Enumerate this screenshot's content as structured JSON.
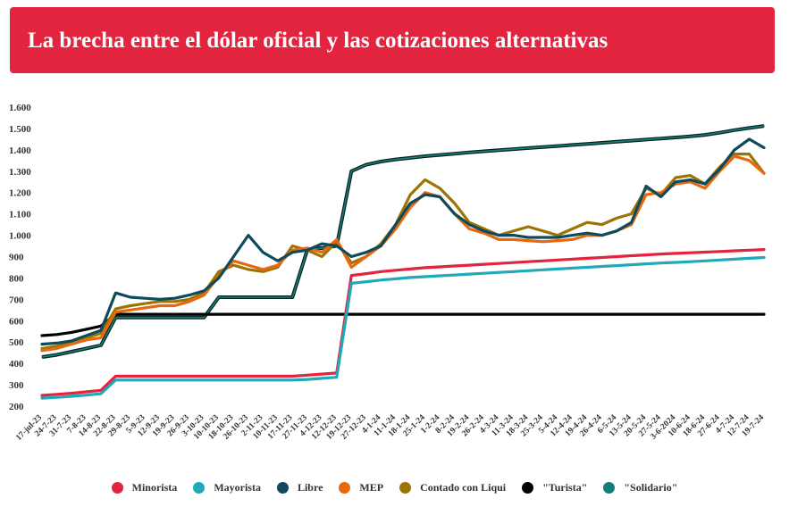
{
  "header": {
    "title": "La brecha entre el dólar oficial y las cotizaciones alternativas"
  },
  "colors": {
    "header_bg": "#e3243f",
    "Minorista": "#e3243f",
    "Mayorista": "#21a9b7",
    "Libre": "#0e4a5c",
    "MEP": "#e8680e",
    "Contado con Liqui": "#9c7305",
    "Turista": "#000000",
    "Solidario": "#147f7a"
  },
  "chart_data": {
    "type": "line",
    "title": "La brecha entre el dólar oficial y las cotizaciones alternativas",
    "xlabel": "",
    "ylabel": "",
    "ylim": [
      200,
      1600
    ],
    "yticks": [
      "200",
      "300",
      "400",
      "500",
      "600",
      "700",
      "800",
      "900",
      "1.000",
      "1.100",
      "1.200",
      "1.300",
      "1.400",
      "1.500",
      "1.600"
    ],
    "grid": false,
    "legend_position": "bottom",
    "x": [
      "17-jul-23",
      "24-7-23",
      "31-7-23",
      "7-8-23",
      "14-8-23",
      "22-8-23",
      "29-8-23",
      "5-9-23",
      "12-9-23",
      "19-9-23",
      "26-9-23",
      "3-10-23",
      "10-10-23",
      "18-10-23",
      "26-10-23",
      "2-11-23",
      "10-11-23",
      "17-11-23",
      "27-11-23",
      "4-12-23",
      "12-12-23",
      "19-12-23",
      "27-12-23",
      "4-1-24",
      "11-1-24",
      "18-1-24",
      "25-1-24",
      "1-2-24",
      "8-2-24",
      "19-2-24",
      "26-2-24",
      "4-3-24",
      "11-3-24",
      "18-3-24",
      "25-3-24",
      "5-4-24",
      "12-4-24",
      "19-4-24",
      "26-4-24",
      "6-5-24",
      "13-5-24",
      "20-5-24",
      "27-5-24",
      "3-6-2024",
      "10-6-24",
      "18-6-24",
      "27-6-24",
      "4-7-24",
      "12-7-24",
      "19-7-24"
    ],
    "series": [
      {
        "name": "Minorista",
        "values": [
          250,
          255,
          260,
          267,
          274,
          340,
          340,
          340,
          340,
          340,
          340,
          340,
          340,
          340,
          340,
          340,
          340,
          340,
          345,
          350,
          355,
          812,
          820,
          830,
          836,
          842,
          848,
          852,
          856,
          860,
          864,
          868,
          872,
          876,
          880,
          884,
          888,
          892,
          896,
          900,
          904,
          908,
          912,
          915,
          918,
          921,
          924,
          927,
          930,
          933
        ]
      },
      {
        "name": "Mayorista",
        "values": [
          237,
          241,
          246,
          252,
          258,
          322,
          322,
          322,
          322,
          322,
          322,
          322,
          322,
          322,
          322,
          322,
          322,
          322,
          325,
          330,
          335,
          775,
          782,
          790,
          796,
          802,
          806,
          810,
          814,
          818,
          822,
          826,
          830,
          834,
          838,
          842,
          846,
          850,
          854,
          858,
          862,
          866,
          870,
          873,
          876,
          880,
          884,
          888,
          892,
          896
        ]
      },
      {
        "name": "Libre",
        "values": [
          490,
          495,
          505,
          530,
          555,
          730,
          710,
          705,
          700,
          705,
          720,
          740,
          800,
          900,
          1000,
          920,
          880,
          920,
          930,
          960,
          950,
          900,
          920,
          950,
          1050,
          1150,
          1190,
          1180,
          1100,
          1050,
          1020,
          1000,
          1000,
          990,
          990,
          990,
          1000,
          1010,
          1000,
          1020,
          1060,
          1230,
          1180,
          1250,
          1260,
          1240,
          1310,
          1400,
          1450,
          1410
        ]
      },
      {
        "name": "MEP",
        "values": [
          460,
          470,
          490,
          510,
          520,
          640,
          650,
          660,
          670,
          670,
          690,
          720,
          810,
          880,
          860,
          840,
          860,
          930,
          940,
          920,
          980,
          850,
          900,
          950,
          1030,
          1130,
          1200,
          1180,
          1100,
          1030,
          1010,
          980,
          980,
          975,
          970,
          975,
          980,
          1000,
          1000,
          1020,
          1050,
          1190,
          1200,
          1240,
          1250,
          1220,
          1300,
          1370,
          1350,
          1290
        ]
      },
      {
        "name": "Contado con Liqui",
        "values": [
          470,
          480,
          500,
          520,
          540,
          655,
          670,
          680,
          690,
          690,
          700,
          730,
          830,
          860,
          840,
          830,
          850,
          950,
          930,
          900,
          970,
          870,
          900,
          960,
          1050,
          1190,
          1260,
          1220,
          1150,
          1060,
          1030,
          1000,
          1020,
          1040,
          1020,
          1000,
          1030,
          1060,
          1050,
          1080,
          1100,
          1220,
          1190,
          1270,
          1280,
          1240,
          1320,
          1380,
          1380,
          1290
        ]
      },
      {
        "name": "\"Turista\"",
        "values": [
          530,
          535,
          545,
          560,
          575,
          630,
          630,
          630,
          630,
          630,
          630,
          630,
          630,
          630,
          630,
          630,
          630,
          630,
          630,
          630,
          630,
          630,
          630,
          630,
          630,
          630,
          630,
          630,
          630,
          630,
          630,
          630,
          630,
          630,
          630,
          630,
          630,
          630,
          630,
          630,
          630,
          630,
          630,
          630,
          630,
          630,
          630,
          630,
          630,
          630
        ]
      },
      {
        "name": "\"Solidario\"",
        "values": [
          430,
          440,
          455,
          470,
          485,
          615,
          615,
          615,
          615,
          615,
          615,
          615,
          710,
          710,
          710,
          710,
          710,
          710,
          930,
          940,
          950,
          1300,
          1330,
          1345,
          1355,
          1362,
          1370,
          1376,
          1382,
          1388,
          1393,
          1398,
          1403,
          1408,
          1413,
          1418,
          1423,
          1428,
          1433,
          1438,
          1443,
          1448,
          1453,
          1458,
          1463,
          1470,
          1480,
          1492,
          1502,
          1512
        ]
      }
    ]
  },
  "legend": [
    {
      "label": "Minorista",
      "color": "#e3243f"
    },
    {
      "label": "Mayorista",
      "color": "#21a9b7"
    },
    {
      "label": "Libre",
      "color": "#0e4a5c"
    },
    {
      "label": "MEP",
      "color": "#e8680e"
    },
    {
      "label": "Contado con Liqui",
      "color": "#9c7305"
    },
    {
      "label": "\"Turista\"",
      "color": "#000000"
    },
    {
      "label": "\"Solidario\"",
      "color": "#147f7a"
    }
  ]
}
